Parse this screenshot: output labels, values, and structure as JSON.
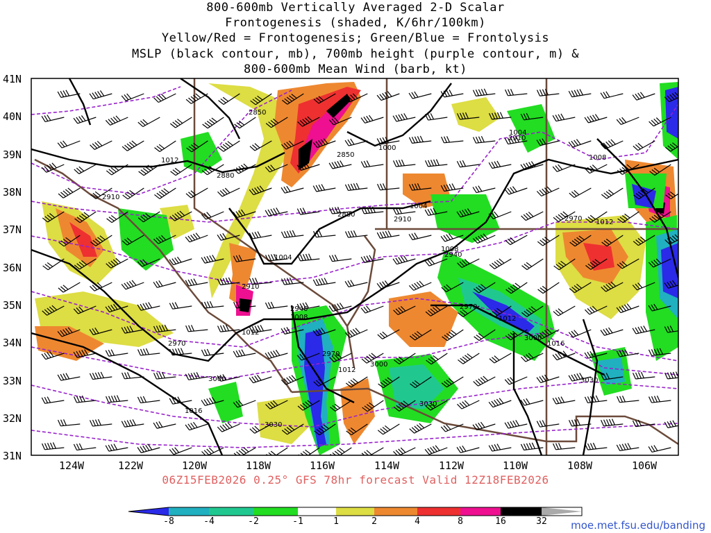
{
  "title": {
    "line1": "800-600mb Vertically Averaged 2-D Scalar",
    "line2": "Frontogenesis (shaded, K/6hr/100km)",
    "line3": "Yellow/Red = Frontogenesis;  Green/Blue = Frontolysis",
    "line4": "MSLP (black contour, mb), 700mb height (purple contour, m) &",
    "line5": "800-600mb Mean Wind (barb, kt)"
  },
  "axes": {
    "lat_labels": [
      "41N",
      "40N",
      "39N",
      "38N",
      "37N",
      "36N",
      "35N",
      "34N",
      "33N",
      "32N",
      "31N"
    ],
    "lon_labels": [
      "124W",
      "122W",
      "120W",
      "118W",
      "116W",
      "114W",
      "112W",
      "110W",
      "108W",
      "106W"
    ]
  },
  "contour_labels": {
    "mslp": [
      "1012",
      "1000",
      "1004",
      "1008",
      "1004",
      "1008",
      "1012",
      "1004",
      "1008",
      "1012",
      "1012",
      "1016",
      "1012",
      "1016"
    ],
    "height": [
      "2850",
      "2850",
      "2880",
      "2910",
      "2880",
      "2910",
      "2910",
      "2940",
      "2910",
      "2970",
      "2940",
      "2970",
      "2970",
      "3000",
      "3000",
      "3030",
      "3030",
      "3000",
      "3030",
      "2970",
      "2910"
    ]
  },
  "footer": {
    "run_info": "06Z15FEB2026 0.25° GFS 78hr forecast Valid 12Z18FEB2026",
    "credit": "moe.met.fsu.edu/banding"
  },
  "legend": {
    "labels": [
      "-8",
      "-4",
      "-2",
      "-1",
      "1",
      "2",
      "4",
      "8",
      "16",
      "32"
    ],
    "colors": {
      "lt_neg8": "#2a2ae8",
      "neg8_neg4": "#20b0c0",
      "neg4_neg2": "#20c890",
      "neg2_neg1": "#22dd22",
      "neg1_1": "#ffffff",
      "p1_2": "#dddd44",
      "p2_4": "#ee8830",
      "p4_8": "#ee3030",
      "p8_16": "#ee1090",
      "p16_32": "#000000",
      "gt32": "#aaaaaa"
    }
  },
  "map_colors": {
    "mslp_contour": "#000000",
    "height_contour": "#9922cc",
    "borders": "#6b4a3a"
  }
}
